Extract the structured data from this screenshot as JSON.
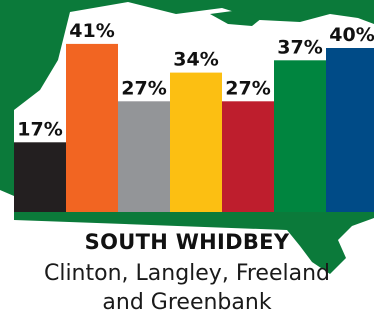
{
  "chart_data": {
    "type": "bar",
    "values": [
      17,
      41,
      27,
      34,
      27,
      37,
      40
    ],
    "labels": [
      "17%",
      "41%",
      "27%",
      "34%",
      "27%",
      "37%",
      "40%"
    ],
    "colors": [
      "#231f20",
      "#f26522",
      "#939598",
      "#fcbf12",
      "#be1e2d",
      "#00853f",
      "#004b87"
    ],
    "ylim": [
      0,
      45
    ],
    "grid": false,
    "legend": "none"
  },
  "region": {
    "title": "SOUTH WHIDBEY",
    "subtitle_line1": "Clinton, Langley, Freeland",
    "subtitle_line2": "and Greenbank"
  },
  "theme": {
    "map_color": "#0b7a3a",
    "text_color": "#111111"
  }
}
